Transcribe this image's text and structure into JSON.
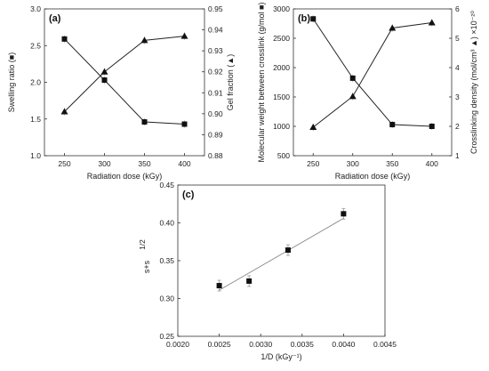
{
  "chart_data": [
    {
      "type": "line",
      "panel_label": "(a)",
      "x": [
        250,
        300,
        350,
        400
      ],
      "xlabel": "Radiation dose (kGy)",
      "xlim": [
        225,
        425
      ],
      "xticks": [
        250,
        300,
        350,
        400
      ],
      "ylabel_left": "Swelling ratio (■)",
      "ylim_left": [
        1.0,
        3.0
      ],
      "yticks_left": [
        "1.0",
        "1.5",
        "2.0",
        "2.5",
        "3.0"
      ],
      "ylabel_right": "Gel fraction (▲)",
      "ylim_right": [
        0.88,
        0.95
      ],
      "yticks_right": [
        "0.88",
        "0.89",
        "0.90",
        "0.91",
        "0.92",
        "0.93",
        "0.94",
        "0.95"
      ],
      "series": [
        {
          "marker": "square",
          "axis": "left",
          "values": [
            2.59,
            2.03,
            1.46,
            1.43
          ]
        },
        {
          "marker": "triangle",
          "axis": "right",
          "values": [
            0.901,
            0.92,
            0.935,
            0.937
          ]
        }
      ],
      "grid": false
    },
    {
      "type": "line",
      "panel_label": "(b)",
      "x": [
        250,
        300,
        350,
        400
      ],
      "xlabel": "Radiation dose (kGy)",
      "xlim": [
        225,
        425
      ],
      "xticks": [
        250,
        300,
        350,
        400
      ],
      "ylabel_left": "Molecular weight between crosslink (g/mol ■)",
      "ylim_left": [
        500,
        3000
      ],
      "yticks_left": [
        "500",
        "1000",
        "1500",
        "2000",
        "2500",
        "3000"
      ],
      "ylabel_right": "Crosslinking density (mol/cm³ ▲) ×10⁻²⁰",
      "ylim_right": [
        1,
        6
      ],
      "yticks_right": [
        "1",
        "2",
        "3",
        "4",
        "5",
        "6"
      ],
      "series": [
        {
          "marker": "square",
          "axis": "left",
          "values": [
            2830,
            1820,
            1030,
            1000
          ]
        },
        {
          "marker": "triangle",
          "axis": "right",
          "values": [
            1.97,
            3.02,
            5.35,
            5.53
          ]
        }
      ],
      "grid": false
    },
    {
      "type": "scatter",
      "panel_label": "(c)",
      "xlabel": "1/D (kGy⁻¹)",
      "ylabel": "s+s",
      "ylabel_sup": "1/2",
      "xlim": [
        0.002,
        0.0045
      ],
      "xticks": [
        "0.0020",
        "0.0025",
        "0.0030",
        "0.0035",
        "0.0040",
        "0.0045"
      ],
      "ylim": [
        0.25,
        0.45
      ],
      "yticks": [
        "0.25",
        "0.30",
        "0.35",
        "0.40",
        "0.45"
      ],
      "points": [
        {
          "x": 0.0025,
          "y": 0.317
        },
        {
          "x": 0.00286,
          "y": 0.323
        },
        {
          "x": 0.00333,
          "y": 0.364
        },
        {
          "x": 0.004,
          "y": 0.412
        }
      ],
      "fit_line": {
        "x": [
          0.0025,
          0.004
        ],
        "y": [
          0.311,
          0.406
        ]
      },
      "grid": false
    }
  ]
}
